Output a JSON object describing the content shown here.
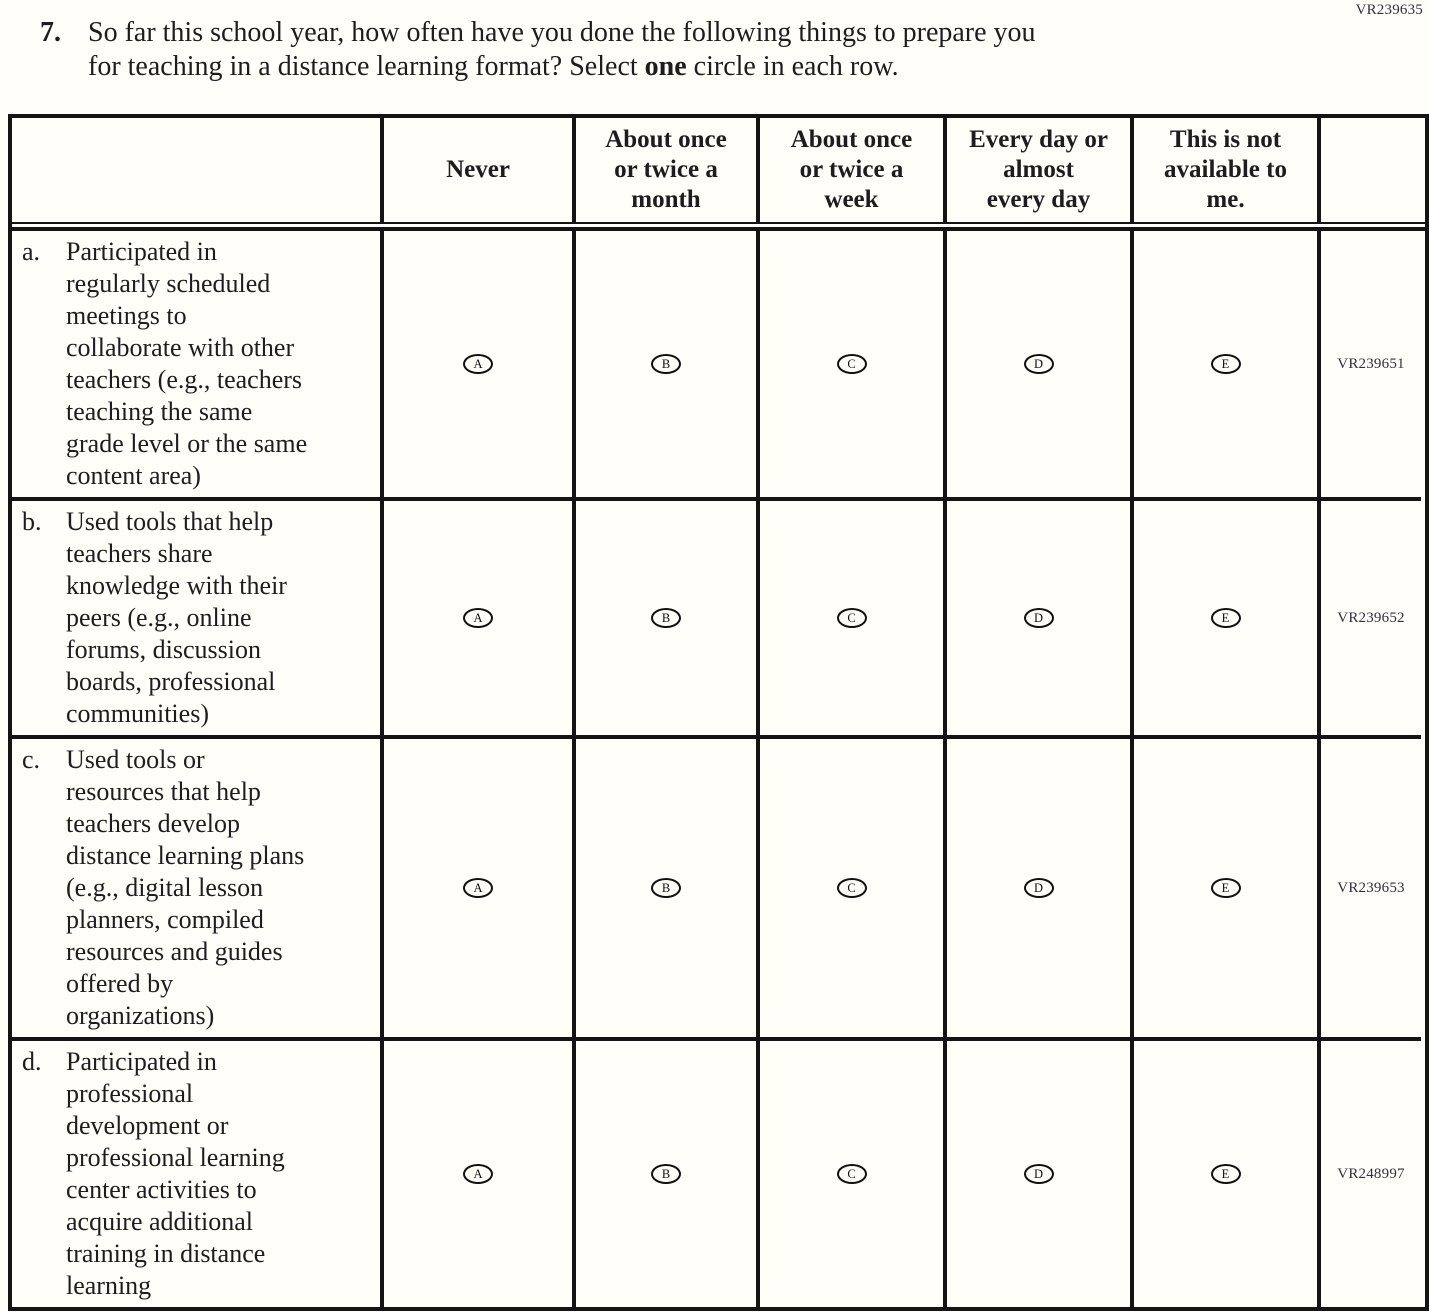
{
  "page_code": "VR239635",
  "question": {
    "number": "7.",
    "text_before": "So far this school year, how often have you done the following things to prepare you\nfor teaching in a distance learning format? Select ",
    "bold_word": "one",
    "text_after": " circle in each row."
  },
  "table": {
    "headers": [
      "Never",
      "About once\nor twice a\nmonth",
      "About once\nor twice a\nweek",
      "Every day or\nalmost\nevery day",
      "This is not\navailable to\nme."
    ],
    "options": [
      "A",
      "B",
      "C",
      "D",
      "E"
    ],
    "rows": [
      {
        "label": "a.",
        "text": "Participated in\nregularly scheduled\nmeetings to\ncollaborate with other\nteachers (e.g., teachers\nteaching the same\ngrade level or the same\ncontent area)",
        "code": "VR239651"
      },
      {
        "label": "b.",
        "text": "Used tools that help\nteachers share\nknowledge with their\npeers (e.g., online\nforums, discussion\nboards, professional\ncommunities)",
        "code": "VR239652"
      },
      {
        "label": "c.",
        "text": "Used tools or\nresources that help\nteachers develop\ndistance learning plans\n(e.g., digital lesson\nplanners, compiled\nresources and guides\noffered by\norganizations)",
        "code": "VR239653"
      },
      {
        "label": "d.",
        "text": "Participated in\nprofessional\ndevelopment or\nprofessional learning\ncenter activities to\nacquire additional\ntraining in distance\nlearning",
        "code": "VR248997"
      }
    ]
  },
  "colors": {
    "ink": "#1d1d1f",
    "border": "#141414",
    "code_ink": "#30303c",
    "background": "#fffef8"
  }
}
